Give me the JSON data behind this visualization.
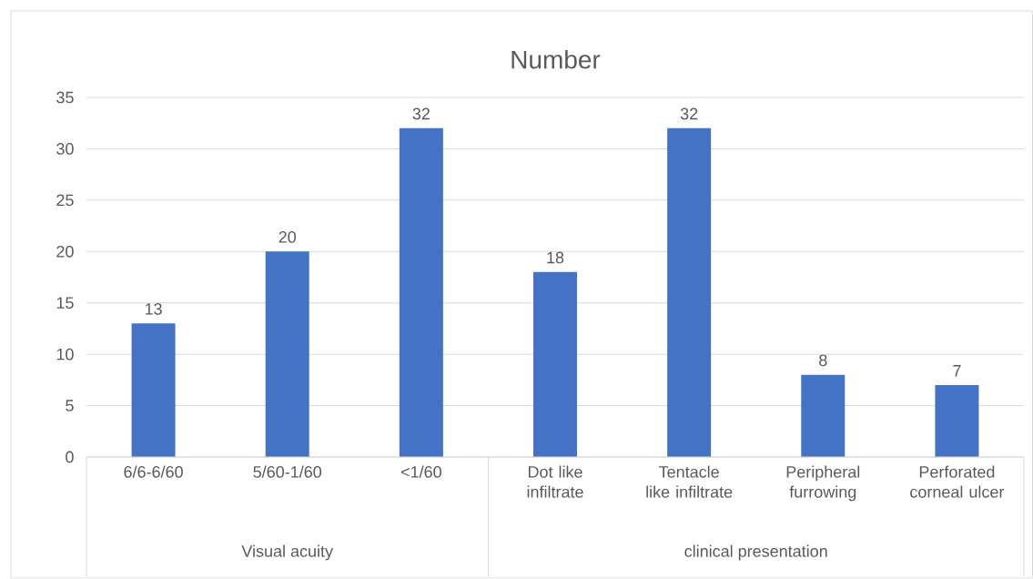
{
  "chart_data": {
    "type": "bar",
    "title": "Number",
    "categories": [
      "6/6-6/60",
      "5/60-1/60",
      "<1/60",
      "Dot like infiltrate",
      "Tentacle like infiltrate",
      "Peripheral furrowing",
      "Perforated corneal ulcer"
    ],
    "values": [
      13,
      20,
      32,
      18,
      32,
      8,
      7
    ],
    "color": "#4472c4",
    "ylim": [
      0,
      35
    ],
    "yticks": [
      0,
      5,
      10,
      15,
      20,
      25,
      30,
      35
    ],
    "grid": "y",
    "data_labels": true,
    "legend": false,
    "annotations": [
      "Visual acuity",
      "clinical presentation"
    ]
  }
}
